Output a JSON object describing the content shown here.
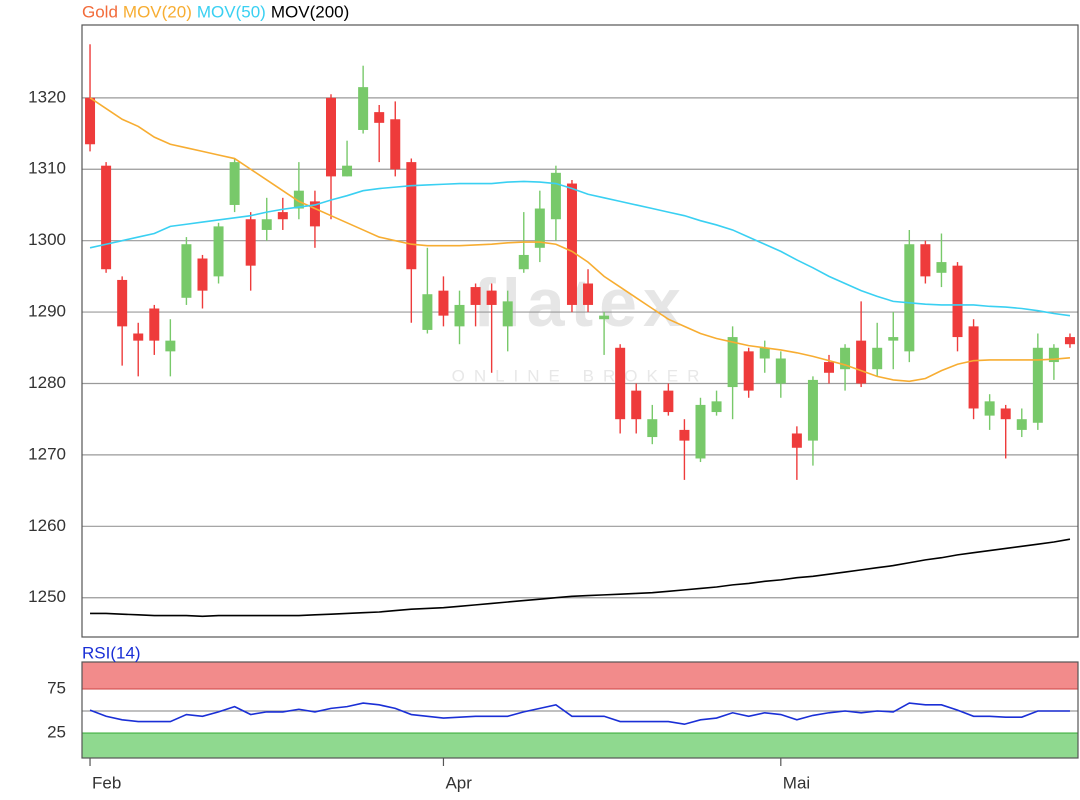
{
  "chart_data": [
    {
      "type": "candlestick",
      "categories": [
        "Feb",
        null,
        null,
        null,
        null,
        null,
        null,
        null,
        null,
        null,
        null,
        null,
        null,
        null,
        null,
        null,
        null,
        null,
        null,
        null,
        null,
        null,
        "Apr",
        null,
        null,
        null,
        null,
        null,
        null,
        null,
        null,
        null,
        null,
        null,
        null,
        null,
        null,
        null,
        null,
        null,
        null,
        null,
        null,
        "Mai",
        null,
        null,
        null,
        null,
        null,
        null,
        null,
        null,
        null,
        null,
        null,
        null,
        null,
        null,
        null,
        null,
        null,
        null
      ],
      "series": [
        {
          "name": "Gold",
          "color": "#f26b3a",
          "up_color": "#78c96a",
          "down_color": "#ee3b3b",
          "open": [
            1320,
            1310.5,
            1294.5,
            1287,
            1290.5,
            1284.5,
            1292,
            1297.5,
            1295,
            1305,
            1303,
            1301.5,
            1304,
            1304.5,
            1305.5,
            1320,
            1309,
            1315.5,
            1318,
            1317,
            1311,
            1287.5,
            1293,
            1288,
            1293.5,
            1293,
            1288,
            1296,
            1299,
            1303,
            1308,
            1294,
            1289,
            1285,
            1279,
            1272.5,
            1279,
            1273.5,
            1269.5,
            1276,
            1279.5,
            1284.5,
            1283.5,
            1280,
            1273,
            1272,
            1283,
            1282,
            1286,
            1282,
            1286,
            1284.5,
            1299.5,
            1295.5,
            1296.5,
            1288,
            1275.5,
            1276.5,
            1273.5,
            1274.5,
            1283,
            1286.5
          ],
          "high": [
            1327.5,
            1311,
            1295,
            1288.5,
            1291,
            1289,
            1300.5,
            1298,
            1302.5,
            1311.5,
            1304,
            1306,
            1306,
            1311,
            1307,
            1320.5,
            1314,
            1324.5,
            1319,
            1319.5,
            1311.5,
            1299,
            1295,
            1293,
            1294,
            1294,
            1293,
            1304,
            1307,
            1310.5,
            1308.5,
            1296,
            1290,
            1285.5,
            1280,
            1277,
            1280,
            1275,
            1278,
            1279,
            1288,
            1285,
            1286,
            1284.5,
            1274,
            1281,
            1284,
            1285.5,
            1291.5,
            1288.5,
            1290,
            1301.5,
            1300,
            1301,
            1297,
            1289,
            1278.5,
            1277,
            1276.5,
            1287,
            1285.5,
            1287
          ],
          "low": [
            1312.5,
            1295.5,
            1282.5,
            1281,
            1284,
            1281,
            1291,
            1290.5,
            1294,
            1304,
            1293,
            1300,
            1301.5,
            1303,
            1299,
            1303,
            1309,
            1315,
            1311,
            1309,
            1288.5,
            1287,
            1288,
            1285.5,
            1288,
            1281.5,
            1284.5,
            1295.5,
            1297,
            1300,
            1290,
            1290,
            1284,
            1273,
            1273,
            1271.5,
            1275.5,
            1266.5,
            1269,
            1275.5,
            1275,
            1278,
            1281.5,
            1278,
            1266.5,
            1268.5,
            1280,
            1279,
            1279.5,
            1281,
            1282,
            1283,
            1294,
            1293.5,
            1284.5,
            1275,
            1273.5,
            1269.5,
            1272.5,
            1273.5,
            1280.5,
            1285
          ],
          "close": [
            1313.5,
            1296,
            1288,
            1286,
            1286,
            1286,
            1299.5,
            1293,
            1302,
            1311,
            1296.5,
            1303,
            1303,
            1307,
            1302,
            1309,
            1310.5,
            1321.5,
            1316.5,
            1310,
            1296,
            1292.5,
            1289.5,
            1291,
            1291,
            1291,
            1291.5,
            1298,
            1304.5,
            1309.5,
            1291,
            1291,
            1289.5,
            1275,
            1275,
            1275,
            1276,
            1272,
            1277,
            1277.5,
            1286.5,
            1279,
            1285,
            1283.5,
            1271,
            1280.5,
            1281.5,
            1285,
            1280,
            1285,
            1286.5,
            1299.5,
            1295,
            1297,
            1286.5,
            1276.5,
            1277.5,
            1275,
            1275,
            1285,
            1285,
            1285.5
          ]
        },
        {
          "name": "MOV(20)",
          "color": "#f7ad32",
          "values": [
            1320,
            1318.5,
            1317,
            1316,
            1314.5,
            1313.5,
            1313,
            1312.5,
            1312,
            1311.5,
            1310,
            1308.5,
            1307,
            1305.5,
            1304.5,
            1303.5,
            1302.5,
            1301.5,
            1300.5,
            1300,
            1299.5,
            1299.3,
            1299.3,
            1299.3,
            1299.4,
            1299.5,
            1299.7,
            1299.8,
            1299.8,
            1299.5,
            1298.5,
            1297,
            1295,
            1293.5,
            1292,
            1290.5,
            1289,
            1288,
            1287,
            1286.3,
            1285.8,
            1285.3,
            1285,
            1284.7,
            1284.3,
            1283.8,
            1283.2,
            1282.6,
            1281.8,
            1281,
            1280.5,
            1280.3,
            1280.7,
            1281.8,
            1282.7,
            1283.2,
            1283.3,
            1283.3,
            1283.3,
            1283.3,
            1283.4,
            1283.6
          ]
        },
        {
          "name": "MOV(50)",
          "color": "#3ad0f2",
          "values": [
            1299,
            1299.5,
            1300,
            1300.5,
            1301,
            1302,
            1302.3,
            1302.6,
            1302.9,
            1303.2,
            1303.5,
            1304,
            1304.4,
            1304.7,
            1305,
            1305.7,
            1306.3,
            1307,
            1307.3,
            1307.5,
            1307.7,
            1307.8,
            1307.9,
            1308,
            1308,
            1308,
            1308.2,
            1308.3,
            1308.2,
            1308,
            1307.3,
            1306.5,
            1306,
            1305.5,
            1305,
            1304.5,
            1304,
            1303.5,
            1302.8,
            1302.2,
            1301.5,
            1300.5,
            1299.5,
            1298.5,
            1297.3,
            1296.2,
            1295,
            1294,
            1293,
            1292.2,
            1291.5,
            1291.3,
            1291.1,
            1291,
            1291,
            1291,
            1290.8,
            1290.7,
            1290.5,
            1290.2,
            1289.8,
            1289.5
          ]
        },
        {
          "name": "MOV(200)",
          "color": "#000000",
          "values": [
            1247.8,
            1247.8,
            1247.7,
            1247.6,
            1247.5,
            1247.5,
            1247.5,
            1247.4,
            1247.5,
            1247.5,
            1247.5,
            1247.5,
            1247.5,
            1247.5,
            1247.6,
            1247.7,
            1247.8,
            1247.9,
            1248,
            1248.2,
            1248.4,
            1248.5,
            1248.6,
            1248.8,
            1249,
            1249.2,
            1249.4,
            1249.6,
            1249.8,
            1250,
            1250.2,
            1250.3,
            1250.4,
            1250.5,
            1250.6,
            1250.7,
            1250.9,
            1251.1,
            1251.3,
            1251.5,
            1251.8,
            1252,
            1252.3,
            1252.5,
            1252.8,
            1253,
            1253.3,
            1253.6,
            1253.9,
            1254.2,
            1254.5,
            1254.9,
            1255.3,
            1255.6,
            1256,
            1256.3,
            1256.6,
            1256.9,
            1257.2,
            1257.5,
            1257.8,
            1258.2
          ]
        }
      ],
      "ylim": [
        1244.5,
        1330.2
      ],
      "yticks": [
        1250,
        1260,
        1270,
        1280,
        1290,
        1300,
        1310,
        1320
      ],
      "grid": true,
      "legend": "top-left"
    },
    {
      "type": "line",
      "title": "RSI(14)",
      "title_color": "#1a2fd6",
      "series": [
        {
          "color": "#1a2fd6",
          "values": [
            51,
            44,
            40,
            38,
            38,
            38,
            46,
            44,
            49,
            55,
            46,
            49,
            49,
            52,
            49,
            53,
            55,
            59,
            57,
            53,
            46,
            44,
            42,
            43,
            44,
            44,
            44,
            49,
            53,
            57,
            44,
            44,
            44,
            38,
            38,
            38,
            38,
            35,
            40,
            42,
            48,
            44,
            48,
            46,
            40,
            45,
            48,
            50,
            48,
            50,
            49,
            59,
            57,
            57,
            51,
            44,
            44,
            43,
            43,
            50,
            50,
            50
          ]
        }
      ],
      "ylim": [
        -3.4,
        105.7
      ],
      "yticks": [
        25,
        75
      ],
      "reference_line": 50,
      "overbought_color": "#f28b8b",
      "oversold_color": "#8fd98f"
    }
  ],
  "watermark": {
    "logo": "flatex",
    "tagline": "ONLINE BROKER"
  }
}
